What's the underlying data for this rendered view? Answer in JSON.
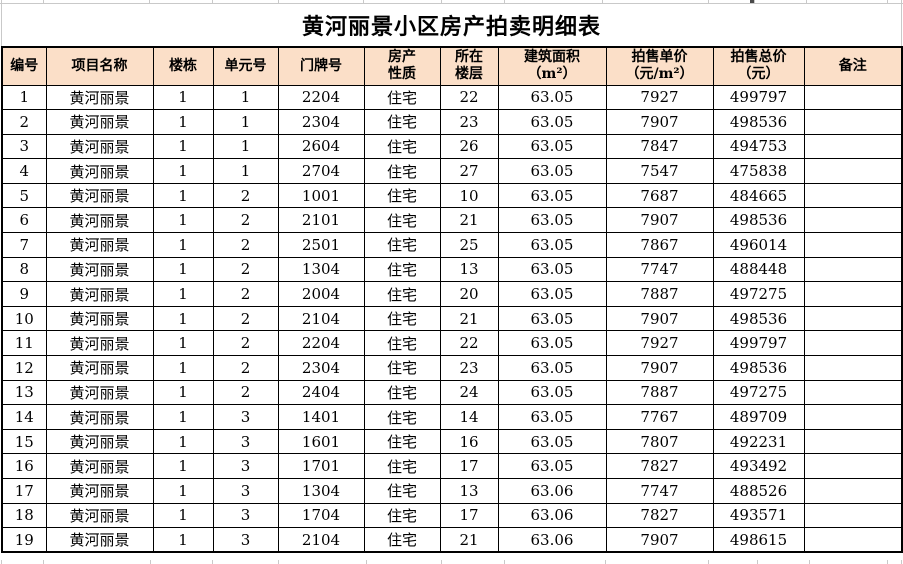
{
  "main": {
    "title": "黄河丽景小区房产拍卖明细表",
    "table": {
      "columns": [
        "编号",
        "项目名称",
        "楼栋",
        "单元号",
        "门牌号",
        "房产\n性质",
        "所在\n楼层",
        "建筑面积\n（m²）",
        "拍售单价\n（元/m²）",
        "拍售总价\n（元）",
        "备注"
      ],
      "rows": [
        [
          "1",
          "黄河丽景",
          "1",
          "1",
          "2204",
          "住宅",
          "22",
          "63.05",
          "7927",
          "499797",
          ""
        ],
        [
          "2",
          "黄河丽景",
          "1",
          "1",
          "2304",
          "住宅",
          "23",
          "63.05",
          "7907",
          "498536",
          ""
        ],
        [
          "3",
          "黄河丽景",
          "1",
          "1",
          "2604",
          "住宅",
          "26",
          "63.05",
          "7847",
          "494753",
          ""
        ],
        [
          "4",
          "黄河丽景",
          "1",
          "1",
          "2704",
          "住宅",
          "27",
          "63.05",
          "7547",
          "475838",
          ""
        ],
        [
          "5",
          "黄河丽景",
          "1",
          "2",
          "1001",
          "住宅",
          "10",
          "63.05",
          "7687",
          "484665",
          ""
        ],
        [
          "6",
          "黄河丽景",
          "1",
          "2",
          "2101",
          "住宅",
          "21",
          "63.05",
          "7907",
          "498536",
          ""
        ],
        [
          "7",
          "黄河丽景",
          "1",
          "2",
          "2501",
          "住宅",
          "25",
          "63.05",
          "7867",
          "496014",
          ""
        ],
        [
          "8",
          "黄河丽景",
          "1",
          "2",
          "1304",
          "住宅",
          "13",
          "63.05",
          "7747",
          "488448",
          ""
        ],
        [
          "9",
          "黄河丽景",
          "1",
          "2",
          "2004",
          "住宅",
          "20",
          "63.05",
          "7887",
          "497275",
          ""
        ],
        [
          "10",
          "黄河丽景",
          "1",
          "2",
          "2104",
          "住宅",
          "21",
          "63.05",
          "7907",
          "498536",
          ""
        ],
        [
          "11",
          "黄河丽景",
          "1",
          "2",
          "2204",
          "住宅",
          "22",
          "63.05",
          "7927",
          "499797",
          ""
        ],
        [
          "12",
          "黄河丽景",
          "1",
          "2",
          "2304",
          "住宅",
          "23",
          "63.05",
          "7907",
          "498536",
          ""
        ],
        [
          "13",
          "黄河丽景",
          "1",
          "2",
          "2404",
          "住宅",
          "24",
          "63.05",
          "7887",
          "497275",
          ""
        ],
        [
          "14",
          "黄河丽景",
          "1",
          "3",
          "1401",
          "住宅",
          "14",
          "63.05",
          "7767",
          "489709",
          ""
        ],
        [
          "15",
          "黄河丽景",
          "1",
          "3",
          "1601",
          "住宅",
          "16",
          "63.05",
          "7807",
          "492231",
          ""
        ],
        [
          "16",
          "黄河丽景",
          "1",
          "3",
          "1701",
          "住宅",
          "17",
          "63.05",
          "7827",
          "493492",
          ""
        ],
        [
          "17",
          "黄河丽景",
          "1",
          "3",
          "1304",
          "住宅",
          "13",
          "63.06",
          "7747",
          "488526",
          ""
        ],
        [
          "18",
          "黄河丽景",
          "1",
          "3",
          "1704",
          "住宅",
          "17",
          "63.06",
          "7827",
          "493571",
          ""
        ],
        [
          "19",
          "黄河丽景",
          "1",
          "3",
          "2104",
          "住宅",
          "21",
          "63.06",
          "7907",
          "498615",
          ""
        ]
      ]
    }
  },
  "colors": {
    "header_bg": "#fbdfc8",
    "table_border": "#000000",
    "sheet_gridline": "#c9c9c9",
    "title_text": "#000000"
  }
}
